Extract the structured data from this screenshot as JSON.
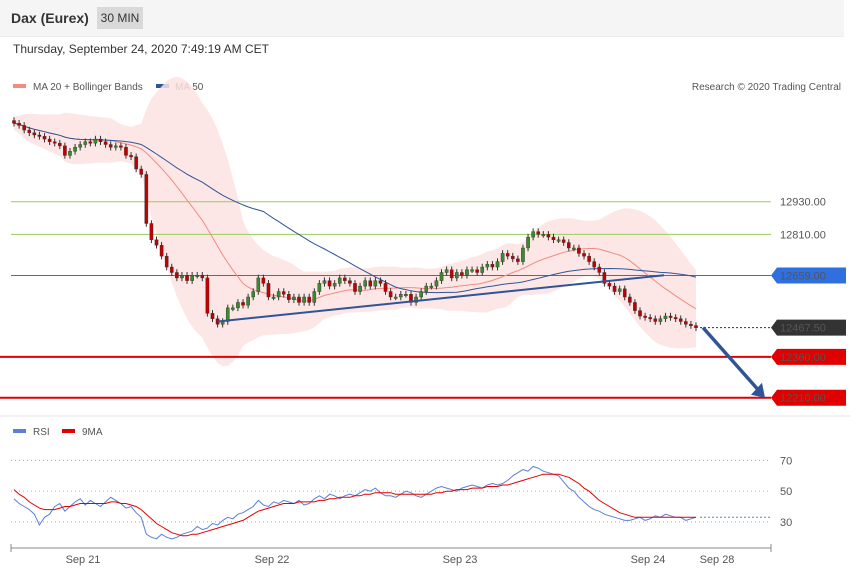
{
  "header": {
    "title": "Dax (Eurex)",
    "timeframe": "30 MIN",
    "datetime": "Thursday, September 24, 2020 7:49:19 AM CET"
  },
  "legend": {
    "ma20": {
      "label": "MA 20 + Bollinger Bands",
      "color": "#f28b82"
    },
    "ma50": {
      "label": "MA 50",
      "color": "#2f5597"
    },
    "copyright": "Research © 2020 Trading Central"
  },
  "rsi_legend": {
    "rsi": {
      "label": "RSI",
      "color": "#5b7fd6"
    },
    "ma9": {
      "label": "9MA",
      "color": "#e00000"
    }
  },
  "chart_data": [
    {
      "type": "candlestick",
      "instrument": "Dax (Eurex)",
      "interval": "30 MIN",
      "ylim": [
        12165,
        12990
      ],
      "x_ticks": [
        "Sep 21",
        "Sep 22",
        "Sep 23",
        "Sep 24",
        "Sep 28"
      ],
      "levels": [
        {
          "value": 12930.0,
          "label": "12930.00",
          "kind": "resistance",
          "color": "#9bcc5a"
        },
        {
          "value": 12810.0,
          "label": "12810.00",
          "kind": "resistance",
          "color": "#9bcc5a"
        },
        {
          "value": 12659.0,
          "label": "12659.00",
          "kind": "pivot",
          "color": "#2f6fe0"
        },
        {
          "value": 12467.5,
          "label": "12467.50",
          "kind": "last-price",
          "color": "#333333"
        },
        {
          "value": 12360.0,
          "label": "12360.00",
          "kind": "support",
          "color": "#e00000"
        },
        {
          "value": 12210.0,
          "label": "12210.00",
          "kind": "support",
          "color": "#e00000"
        }
      ],
      "closes": [
        13218,
        13210,
        13193,
        13183,
        13175,
        13170,
        13160,
        13150,
        13145,
        13135,
        13100,
        13115,
        13130,
        13140,
        13150,
        13145,
        13160,
        13150,
        13140,
        13130,
        13135,
        13130,
        13100,
        13095,
        13050,
        13030,
        12850,
        12790,
        12770,
        12730,
        12690,
        12670,
        12650,
        12660,
        12640,
        12660,
        12660,
        12650,
        12520,
        12500,
        12480,
        12490,
        12540,
        12540,
        12560,
        12550,
        12580,
        12600,
        12650,
        12630,
        12580,
        12580,
        12600,
        12590,
        12570,
        12580,
        12560,
        12580,
        12560,
        12600,
        12630,
        12640,
        12620,
        12630,
        12650,
        12640,
        12630,
        12600,
        12620,
        12640,
        12620,
        12640,
        12630,
        12600,
        12580,
        12580,
        12590,
        12590,
        12560,
        12580,
        12600,
        12620,
        12620,
        12640,
        12670,
        12680,
        12650,
        12670,
        12660,
        12680,
        12680,
        12670,
        12690,
        12700,
        12690,
        12710,
        12740,
        12730,
        12720,
        12710,
        12760,
        12800,
        12820,
        12810,
        12810,
        12800,
        12790,
        12790,
        12780,
        12760,
        12760,
        12740,
        12730,
        12710,
        12690,
        12670,
        12630,
        12620,
        12600,
        12610,
        12580,
        12560,
        12530,
        12510,
        12505,
        12500,
        12490,
        12500,
        12510,
        12505,
        12500,
        12490,
        12480,
        12475,
        12467
      ],
      "ma20_last": 12515,
      "ma50_last": 12635,
      "trendlines": [
        {
          "name": "support-line",
          "from": {
            "bar": "Sep 22",
            "value": 12490
          },
          "to": {
            "bar": "Sep 24",
            "value": 12660
          }
        },
        {
          "name": "forecast-arrow",
          "from": {
            "value": 12467.5
          },
          "to": {
            "value": 12210.0
          }
        }
      ]
    },
    {
      "type": "line",
      "name": "RSI",
      "ylim": [
        15,
        80
      ],
      "y_ticks": [
        30,
        50,
        70
      ],
      "series": [
        {
          "name": "RSI",
          "values": [
            45,
            42,
            40,
            38,
            35,
            28,
            33,
            35,
            40,
            42,
            37,
            40,
            43,
            45,
            41,
            44,
            42,
            40,
            43,
            46,
            44,
            42,
            39,
            40,
            36,
            33,
            22,
            20,
            19,
            22,
            20,
            19,
            20,
            22,
            23,
            24,
            27,
            25,
            26,
            29,
            28,
            31,
            33,
            32,
            35,
            36,
            38,
            40,
            44,
            41,
            40,
            43,
            42,
            44,
            43,
            42,
            44,
            41,
            42,
            45,
            47,
            45,
            48,
            47,
            45,
            47,
            48,
            47,
            49,
            51,
            50,
            52,
            49,
            47,
            47,
            46,
            48,
            50,
            49,
            47,
            46,
            48,
            50,
            52,
            53,
            52,
            51,
            50,
            52,
            53,
            54,
            53,
            52,
            54,
            55,
            54,
            55,
            57,
            60,
            62,
            64,
            63,
            66,
            65,
            63,
            62,
            61,
            60,
            56,
            52,
            50,
            46,
            43,
            40,
            38,
            37,
            35,
            34,
            33,
            32,
            31,
            31,
            32,
            33,
            31,
            32,
            34,
            33,
            35,
            34,
            33,
            33,
            31,
            32,
            33
          ]
        },
        {
          "name": "9MA",
          "values": [
            51,
            48,
            46,
            43,
            41,
            39,
            38,
            38,
            38,
            39,
            40,
            40,
            41,
            42,
            42,
            42,
            42,
            42,
            42,
            43,
            43,
            42,
            42,
            41,
            40,
            38,
            35,
            32,
            29,
            27,
            25,
            23,
            22,
            21,
            21,
            22,
            22,
            23,
            24,
            25,
            26,
            27,
            28,
            29,
            30,
            31,
            33,
            35,
            37,
            38,
            39,
            40,
            41,
            42,
            42,
            42,
            43,
            43,
            43,
            43,
            44,
            44,
            45,
            45,
            46,
            46,
            46,
            47,
            47,
            48,
            48,
            49,
            49,
            49,
            49,
            48,
            48,
            48,
            48,
            48,
            48,
            48,
            48,
            49,
            49,
            50,
            50,
            51,
            51,
            51,
            52,
            52,
            52,
            53,
            53,
            53,
            54,
            54,
            55,
            56,
            57,
            58,
            59,
            60,
            61,
            61,
            61,
            61,
            60,
            59,
            57,
            55,
            52,
            50,
            47,
            44,
            42,
            40,
            38,
            36,
            35,
            34,
            33,
            33,
            33,
            33,
            33,
            33,
            33,
            33,
            33,
            33,
            33,
            33,
            33
          ]
        }
      ]
    }
  ]
}
